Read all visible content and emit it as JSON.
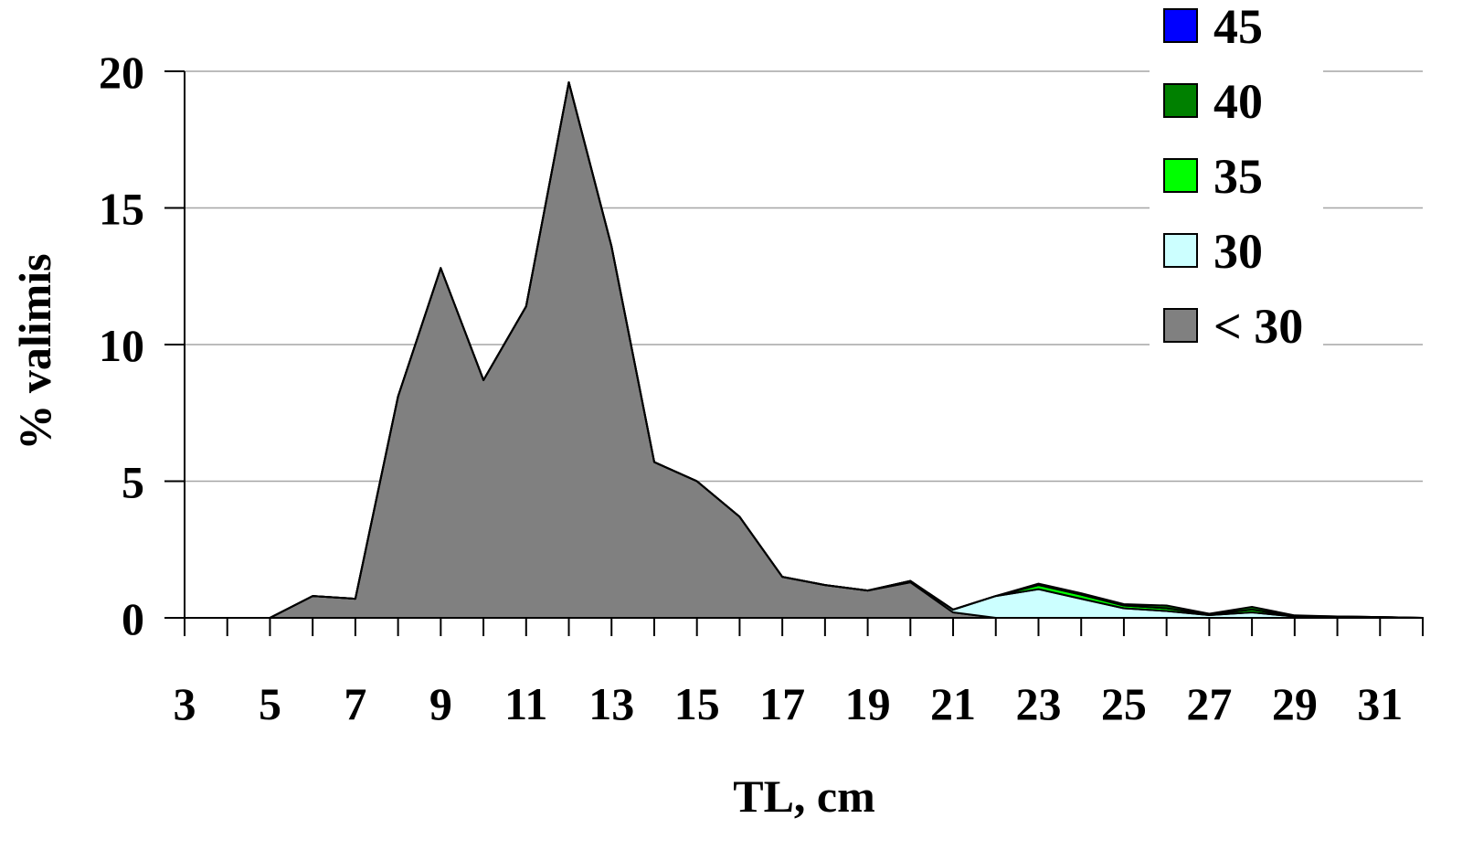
{
  "chart_data": {
    "type": "area",
    "stacked": true,
    "xlabel": "TL, cm",
    "ylabel": "% valimis",
    "ylim": [
      0,
      20
    ],
    "yticks": [
      0,
      5,
      10,
      15,
      20
    ],
    "x": [
      3,
      4,
      5,
      6,
      7,
      8,
      9,
      10,
      11,
      12,
      13,
      14,
      15,
      16,
      17,
      18,
      19,
      20,
      21,
      22,
      23,
      24,
      25,
      26,
      27,
      28,
      29,
      30,
      31,
      32
    ],
    "xtick_labels": [
      "3",
      "5",
      "7",
      "9",
      "11",
      "13",
      "15",
      "17",
      "19",
      "21",
      "23",
      "25",
      "27",
      "29",
      "31"
    ],
    "grid": "horizontal",
    "legend_position": "top-right",
    "series": [
      {
        "name": "< 30",
        "color": "#808080",
        "values": [
          0,
          0,
          0,
          0.8,
          0.7,
          8.1,
          12.8,
          8.7,
          11.4,
          19.6,
          13.6,
          5.7,
          5.0,
          3.7,
          1.5,
          1.2,
          1.0,
          1.3,
          0.2,
          0,
          0,
          0,
          0,
          0,
          0,
          0,
          0,
          0,
          0,
          0
        ]
      },
      {
        "name": "30",
        "color": "#ccffff",
        "values": [
          0,
          0,
          0,
          0,
          0,
          0,
          0,
          0,
          0,
          0,
          0,
          0,
          0,
          0,
          0,
          0,
          0,
          0.05,
          0.1,
          0.8,
          1.05,
          0.7,
          0.35,
          0.25,
          0.1,
          0.2,
          0.05,
          0.05,
          0.03,
          0
        ]
      },
      {
        "name": "35",
        "color": "#00ff00",
        "values": [
          0,
          0,
          0,
          0,
          0,
          0,
          0,
          0,
          0,
          0,
          0,
          0,
          0,
          0,
          0,
          0,
          0,
          0,
          0,
          0,
          0.15,
          0.15,
          0.1,
          0.1,
          0.03,
          0.1,
          0.02,
          0,
          0,
          0
        ]
      },
      {
        "name": "40",
        "color": "#008000",
        "values": [
          0,
          0,
          0,
          0,
          0,
          0,
          0,
          0,
          0,
          0,
          0,
          0,
          0,
          0,
          0,
          0,
          0,
          0,
          0,
          0,
          0.05,
          0.05,
          0.05,
          0.1,
          0.02,
          0.1,
          0.02,
          0,
          0,
          0
        ]
      },
      {
        "name": "45",
        "color": "#0000ff",
        "values": [
          0,
          0,
          0,
          0,
          0,
          0,
          0,
          0,
          0,
          0,
          0,
          0,
          0,
          0,
          0,
          0,
          0,
          0,
          0,
          0,
          0,
          0,
          0,
          0,
          0,
          0,
          0,
          0,
          0,
          0
        ]
      }
    ]
  }
}
